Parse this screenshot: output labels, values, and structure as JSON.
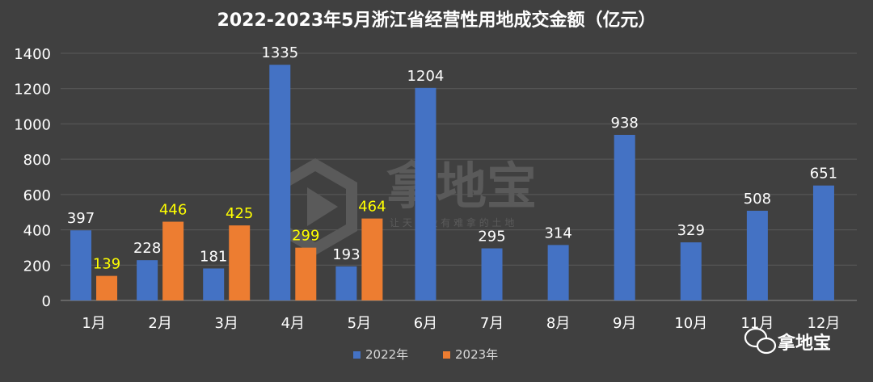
{
  "chart_data": {
    "type": "bar",
    "title": "2022-2023年5月浙江省经营性用地成交金额（亿元）",
    "categories": [
      "1月",
      "2月",
      "3月",
      "4月",
      "5月",
      "6月",
      "7月",
      "8月",
      "9月",
      "10月",
      "11月",
      "12月"
    ],
    "series": [
      {
        "name": "2022年",
        "values": [
          397,
          228,
          181,
          1335,
          193,
          1204,
          295,
          314,
          938,
          329,
          508,
          651
        ],
        "color": "#4472C4",
        "label_color": "#FFFFFF"
      },
      {
        "name": "2023年",
        "values": [
          139,
          446,
          425,
          299,
          464,
          null,
          null,
          null,
          null,
          null,
          null,
          null
        ],
        "color": "#ED7D31",
        "label_color": "#FFFF00"
      }
    ],
    "yticks": [
      0,
      200,
      400,
      600,
      800,
      1000,
      1200,
      1400
    ],
    "ylim": [
      0,
      1400
    ],
    "grid": true,
    "legend_position": "bottom"
  },
  "watermark": {
    "text": "拿地宝",
    "slogan": "让 天 下 没 有 难 拿 的 土 地"
  },
  "badge": {
    "text": "拿地宝",
    "icon": "wechat-icon"
  }
}
